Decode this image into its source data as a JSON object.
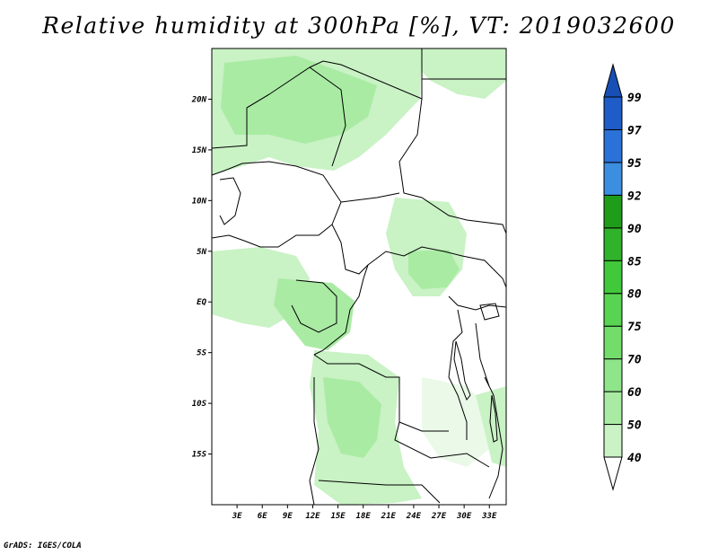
{
  "title": "Relative humidity at 300hPa [%], VT: 2019032600",
  "credit": "GrADS: IGES/COLA",
  "map": {
    "lon_range": [
      0,
      35
    ],
    "lat_range": [
      -20,
      25
    ],
    "x_ticks": [
      "3E",
      "6E",
      "9E",
      "12E",
      "15E",
      "18E",
      "21E",
      "24E",
      "27E",
      "30E",
      "33E"
    ],
    "y_ticks": [
      "20N",
      "15N",
      "10N",
      "5N",
      "EQ",
      "5S",
      "10S",
      "15S"
    ]
  },
  "colorbar": {
    "levels": [
      "40",
      "50",
      "60",
      "70",
      "75",
      "80",
      "85",
      "90",
      "92",
      "95",
      "97",
      "99"
    ],
    "colors": [
      "#eaf9e8",
      "#c9f2c5",
      "#a9eba3",
      "#8fe589",
      "#73dd6c",
      "#59d352",
      "#41c93b",
      "#30b32a",
      "#1f9d1a",
      "#3c8ee0",
      "#2a72d8",
      "#1f5cc8",
      "#174fb5"
    ]
  }
}
